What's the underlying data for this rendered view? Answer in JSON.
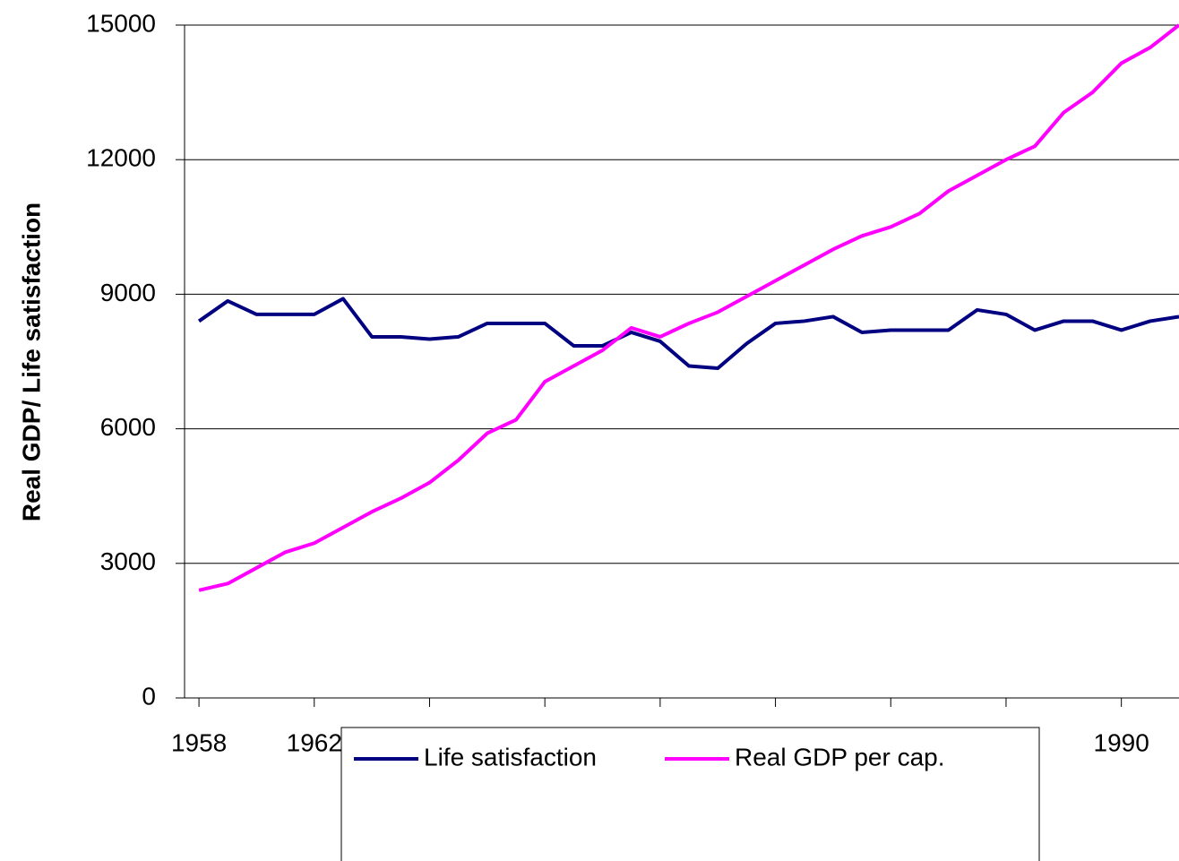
{
  "chart_data": {
    "type": "line",
    "y_label": "Real GDP/ Life satisfaction",
    "x": [
      1958,
      1959,
      1960,
      1961,
      1962,
      1963,
      1964,
      1965,
      1966,
      1967,
      1968,
      1969,
      1970,
      1971,
      1972,
      1973,
      1974,
      1975,
      1976,
      1977,
      1978,
      1979,
      1980,
      1981,
      1982,
      1983,
      1984,
      1985,
      1986,
      1987,
      1988,
      1989,
      1990,
      1991,
      1992
    ],
    "series": [
      {
        "name": "Life satisfaction",
        "color": "#000080",
        "values": [
          8400,
          8850,
          8550,
          8550,
          8550,
          8900,
          8050,
          8050,
          8000,
          8050,
          8350,
          8350,
          8350,
          7850,
          7850,
          8150,
          7950,
          7400,
          7350,
          7900,
          8350,
          8400,
          8500,
          8150,
          8200,
          8200,
          8200,
          8650,
          8550,
          8200,
          8400,
          8400,
          8200,
          8400,
          8500
        ]
      },
      {
        "name": "Real GDP per cap.",
        "color": "#ff00ff",
        "values": [
          2400,
          2550,
          2900,
          3250,
          3450,
          3800,
          4150,
          4450,
          4800,
          5300,
          5900,
          6200,
          7050,
          7400,
          7750,
          8250,
          8050,
          8350,
          8600,
          8950,
          9300,
          9650,
          10000,
          10300,
          10500,
          10800,
          11300,
          11650,
          12000,
          12300,
          13050,
          13500,
          14150,
          14500,
          15000
        ]
      }
    ],
    "xlim": [
      1957.5,
      1992
    ],
    "xticks": [
      1958,
      1962,
      1966,
      1970,
      1974,
      1978,
      1982,
      1986,
      1990
    ],
    "ylim": [
      0,
      15000
    ],
    "yticks": [
      0,
      3000,
      6000,
      9000,
      12000,
      15000
    ],
    "grid": true,
    "legend": "bottom"
  }
}
